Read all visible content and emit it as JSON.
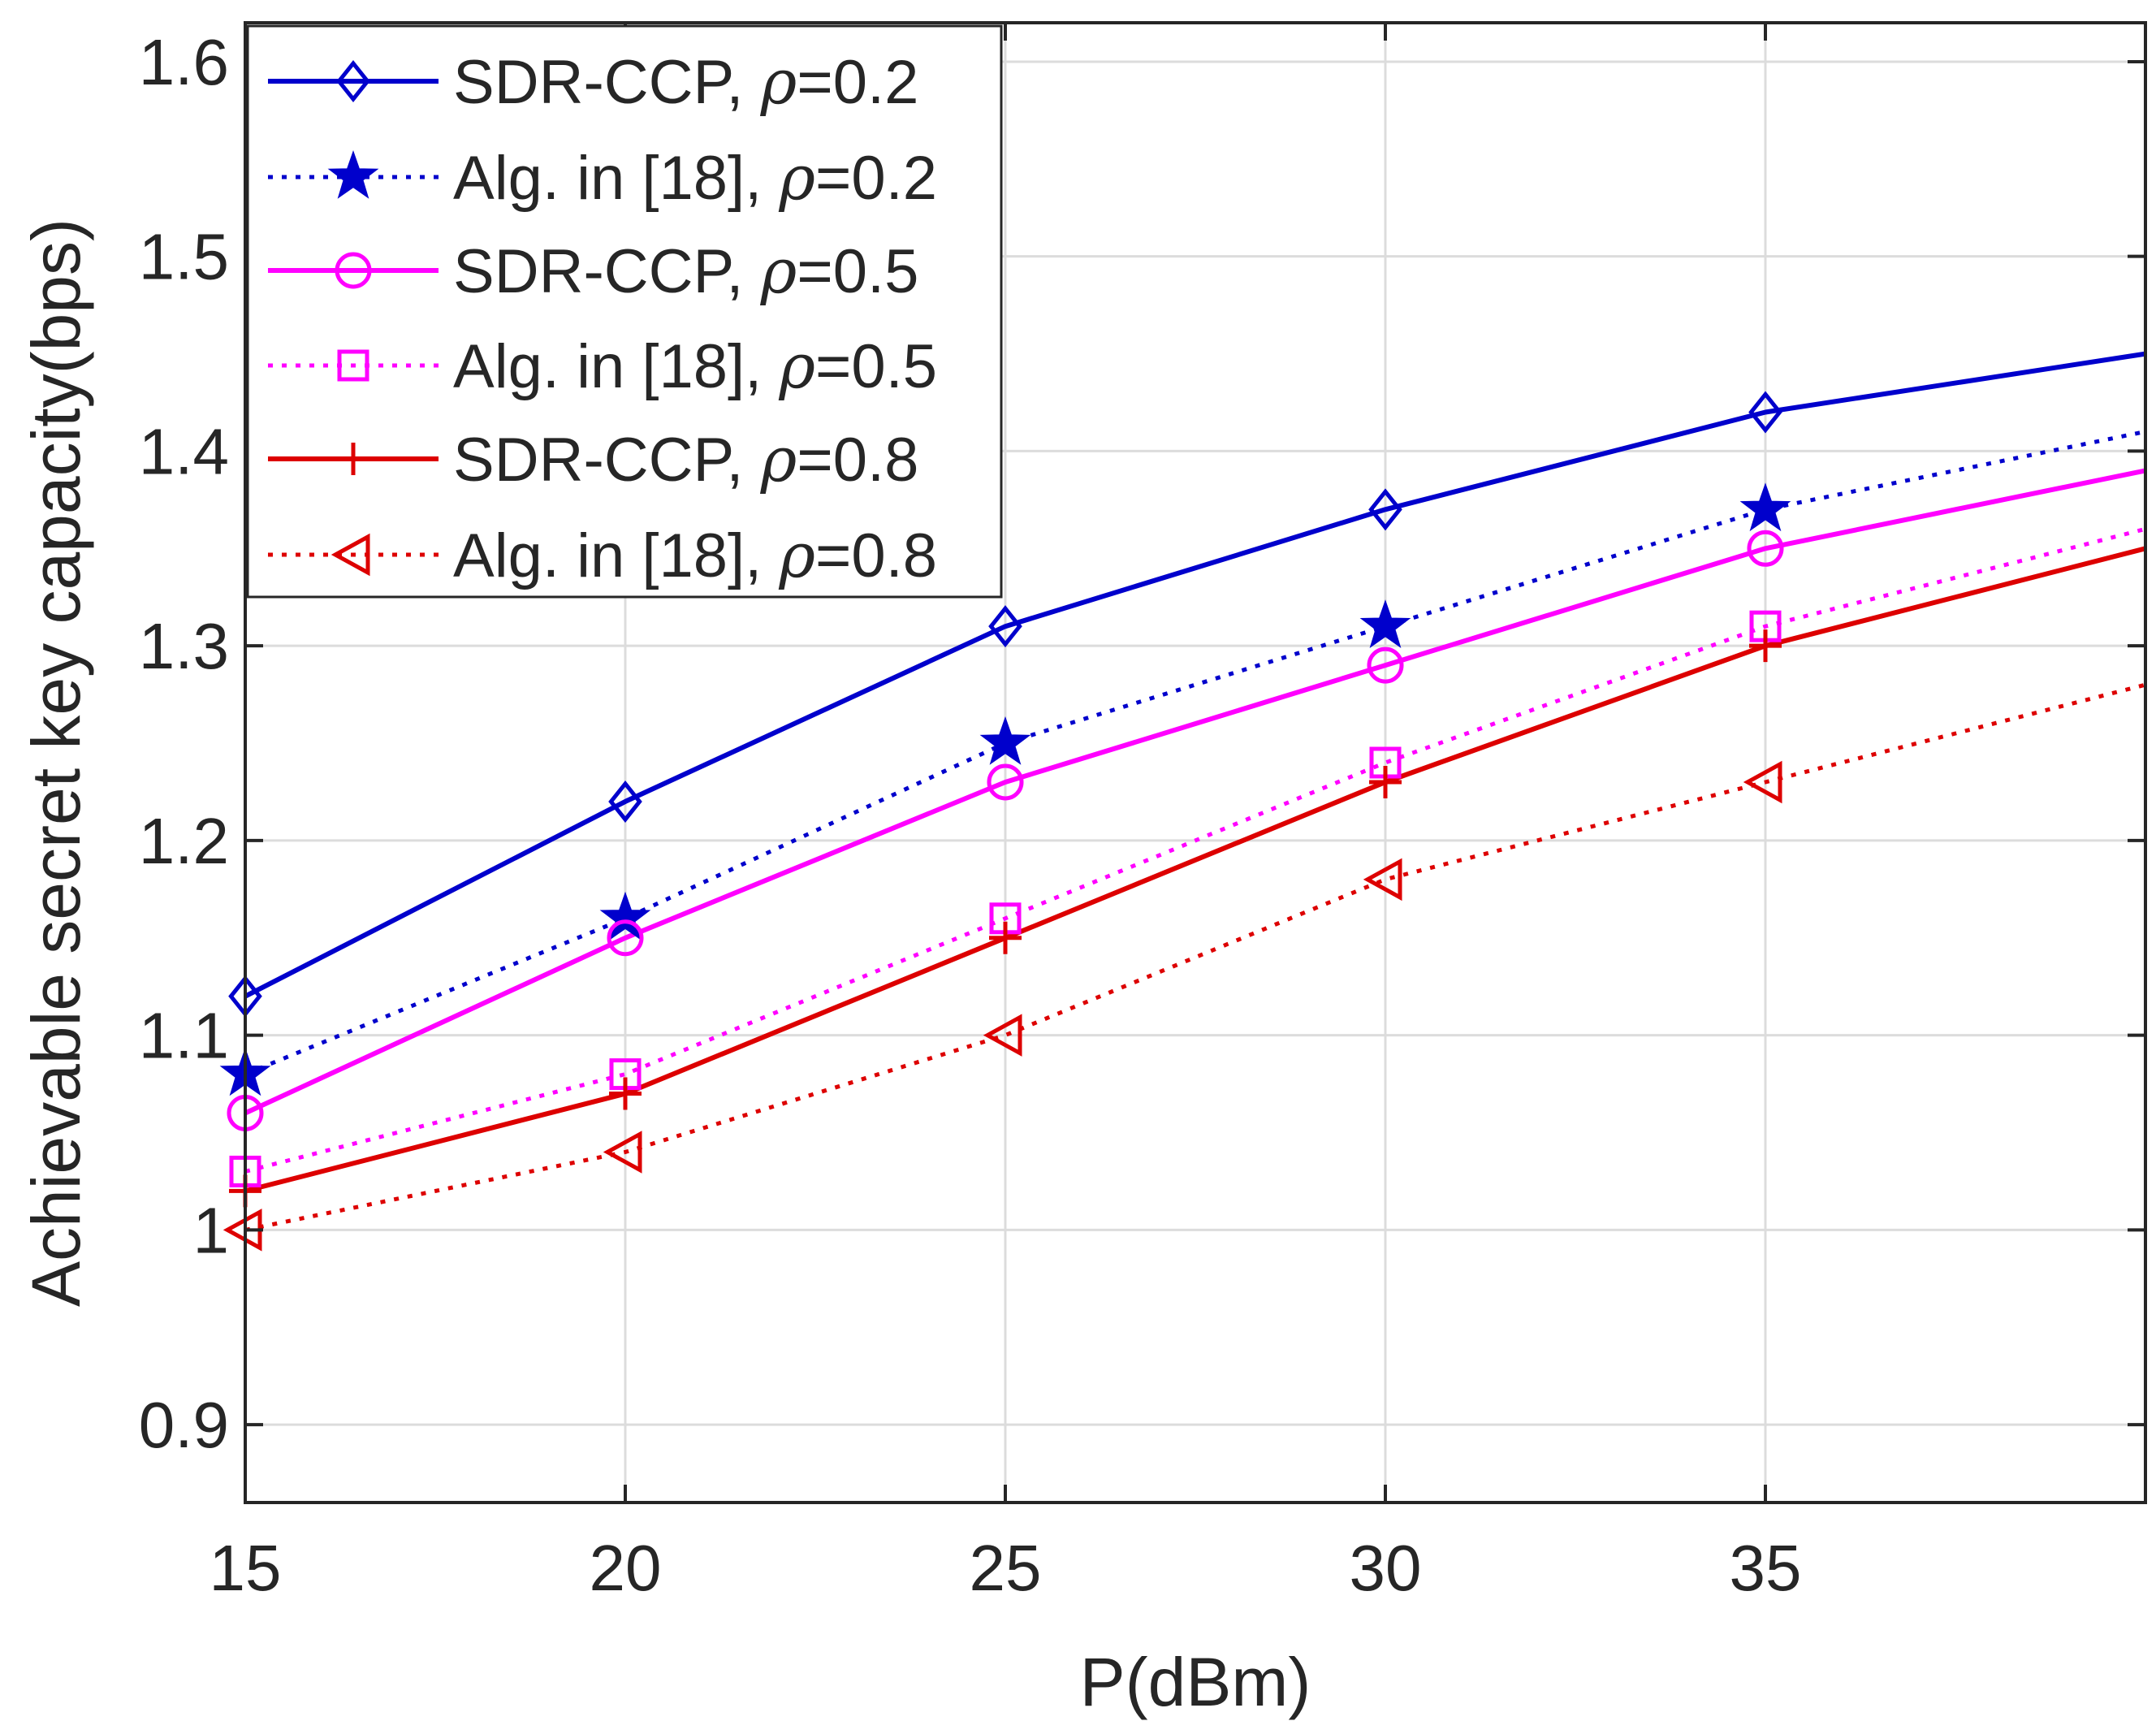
{
  "chart_data": {
    "type": "line",
    "title": "",
    "xlabel": "P(dBm)",
    "ylabel": "Achievable secret key capacity(bps)",
    "xlim": [
      15,
      40
    ],
    "ylim": [
      0.86,
      1.62
    ],
    "xticks": [
      15,
      20,
      25,
      30,
      35
    ],
    "yticks": [
      0.9,
      1.0,
      1.1,
      1.2,
      1.3,
      1.4,
      1.5,
      1.6
    ],
    "xtick_labels": [
      "15",
      "20",
      "25",
      "30",
      "35"
    ],
    "ytick_labels": [
      "0.9",
      "1",
      "1.1",
      "1.2",
      "1.3",
      "1.4",
      "1.5",
      "1.6"
    ],
    "grid": true,
    "legend_position": "top-left",
    "x": [
      15,
      20,
      25,
      30,
      35,
      40
    ],
    "series": [
      {
        "name": "SDR-CCP, ρ=0.2",
        "label_main": "SDR-CCP, ",
        "label_rho": "ρ",
        "label_val": "=0.2",
        "color": "#0000cc",
        "dash": "solid",
        "marker": "diamond",
        "values": [
          1.12,
          1.22,
          1.31,
          1.37,
          1.42,
          1.45
        ]
      },
      {
        "name": "Alg. in [18], ρ=0.2",
        "label_main": "Alg. in [18], ",
        "label_rho": "ρ",
        "label_val": "=0.2",
        "color": "#0000cc",
        "dash": "dotted",
        "marker": "star",
        "values": [
          1.08,
          1.16,
          1.25,
          1.31,
          1.37,
          1.41
        ]
      },
      {
        "name": "SDR-CCP, ρ=0.5",
        "label_main": "SDR-CCP, ",
        "label_rho": "ρ",
        "label_val": "=0.5",
        "color": "#ff00ff",
        "dash": "solid",
        "marker": "circle",
        "values": [
          1.06,
          1.15,
          1.23,
          1.29,
          1.35,
          1.39
        ]
      },
      {
        "name": "Alg. in [18], ρ=0.5",
        "label_main": "Alg. in [18], ",
        "label_rho": "ρ",
        "label_val": "=0.5",
        "color": "#ff00ff",
        "dash": "dotted",
        "marker": "square",
        "values": [
          1.03,
          1.08,
          1.16,
          1.24,
          1.31,
          1.36
        ]
      },
      {
        "name": "SDR-CCP, ρ=0.8",
        "label_main": "SDR-CCP, ",
        "label_rho": "ρ",
        "label_val": "=0.8",
        "color": "#dd0000",
        "dash": "solid",
        "marker": "plus",
        "values": [
          1.02,
          1.07,
          1.15,
          1.23,
          1.3,
          1.35
        ]
      },
      {
        "name": "Alg. in [18], ρ=0.8",
        "label_main": "Alg. in [18], ",
        "label_rho": "ρ",
        "label_val": "=0.8",
        "color": "#dd0000",
        "dash": "dotted",
        "marker": "triangle-left",
        "values": [
          1.0,
          1.04,
          1.1,
          1.18,
          1.23,
          1.28
        ]
      }
    ]
  }
}
